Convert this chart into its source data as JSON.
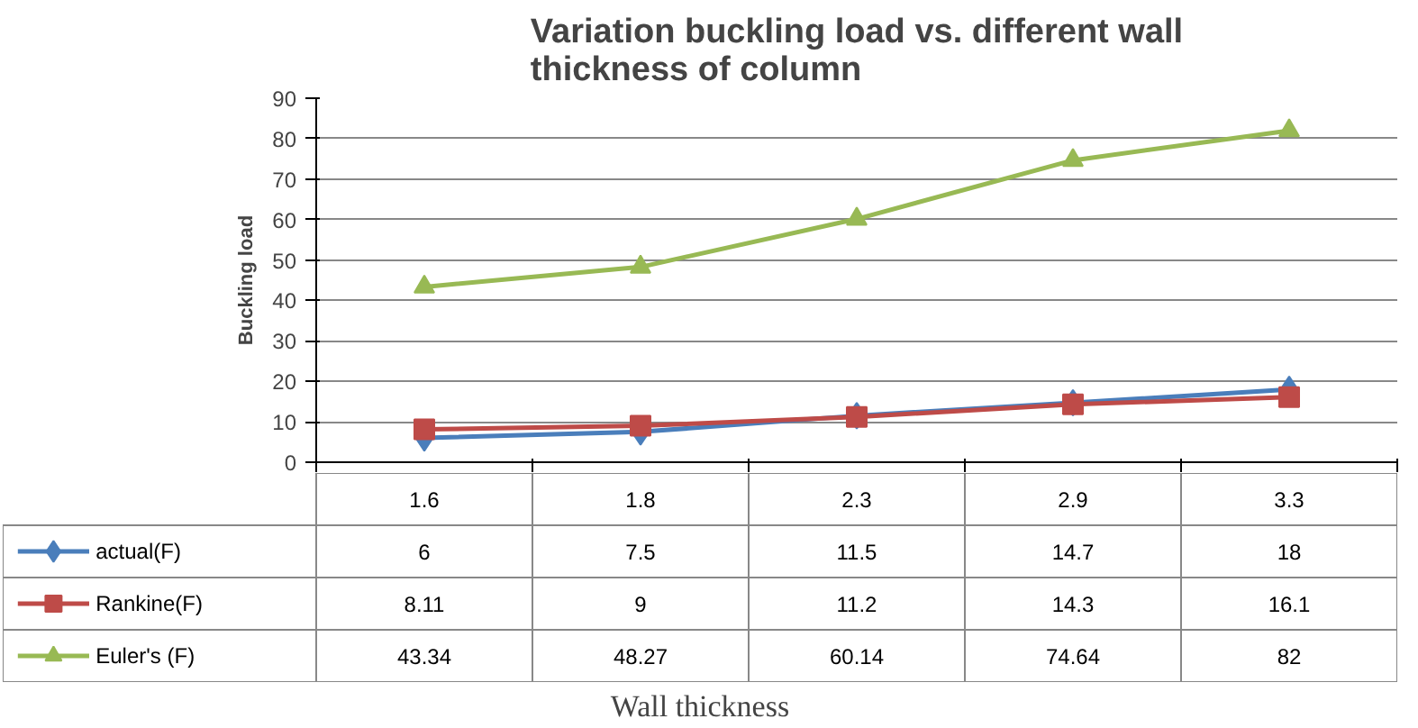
{
  "chart_data": {
    "type": "line",
    "title": "Variation buckling load vs. different wall thickness of column",
    "annotations": [
      "Wall thickness"
    ],
    "ylabel": "Buckling load",
    "categories": [
      "1.6",
      "1.8",
      "2.3",
      "2.9",
      "3.3"
    ],
    "series": [
      {
        "name": "actual(F)",
        "color": "#4a7ebb",
        "marker": "diamond",
        "values": [
          6,
          7.5,
          11.5,
          14.7,
          18
        ],
        "value_labels": [
          "6",
          "7.5",
          "11.5",
          "14.7",
          "18"
        ]
      },
      {
        "name": "Rankine(F)",
        "color": "#be4b48",
        "marker": "square",
        "values": [
          8.11,
          9,
          11.2,
          14.3,
          16.1
        ],
        "value_labels": [
          "8.11",
          "9",
          "11.2",
          "14.3",
          "16.1"
        ]
      },
      {
        "name": "Euler's (F)",
        "color": "#98b954",
        "marker": "triangle",
        "values": [
          43.34,
          48.27,
          60.14,
          74.64,
          82
        ],
        "value_labels": [
          "43.34",
          "48.27",
          "60.14",
          "74.64",
          "82"
        ]
      }
    ],
    "ylim": [
      0,
      90
    ],
    "yticks": [
      0,
      10,
      20,
      30,
      40,
      50,
      60,
      70,
      80,
      90
    ],
    "grid": "y",
    "legend": "bottom",
    "data_labels": true
  }
}
